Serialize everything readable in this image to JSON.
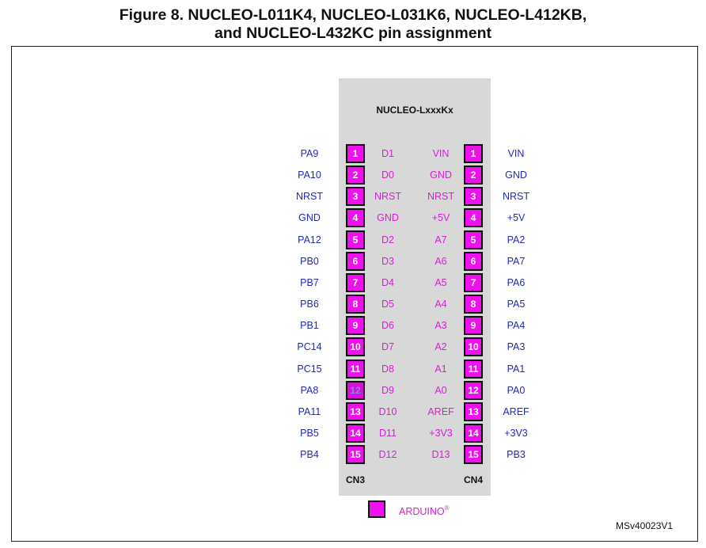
{
  "title": {
    "line1": "Figure 8. NUCLEO-L011K4, NUCLEO-L031K6, NUCLEO-L412KB,",
    "line2": "and NUCLEO-L432KC pin assignment"
  },
  "board_label": "NUCLEO-LxxxKx",
  "connectors": {
    "left": {
      "label": "CN3",
      "pins": [
        {
          "num": "1",
          "mcu": "PA9",
          "arduino": "D1"
        },
        {
          "num": "2",
          "mcu": "PA10",
          "arduino": "D0"
        },
        {
          "num": "3",
          "mcu": "NRST",
          "arduino": "NRST"
        },
        {
          "num": "4",
          "mcu": "GND",
          "arduino": "GND"
        },
        {
          "num": "5",
          "mcu": "PA12",
          "arduino": "D2"
        },
        {
          "num": "6",
          "mcu": "PB0",
          "arduino": "D3"
        },
        {
          "num": "7",
          "mcu": "PB7",
          "arduino": "D4"
        },
        {
          "num": "8",
          "mcu": "PB6",
          "arduino": "D5"
        },
        {
          "num": "9",
          "mcu": "PB1",
          "arduino": "D6"
        },
        {
          "num": "10",
          "mcu": "PC14",
          "arduino": "D7"
        },
        {
          "num": "11",
          "mcu": "PC15",
          "arduino": "D8"
        },
        {
          "num": "12",
          "mcu": "PA8",
          "arduino": "D9"
        },
        {
          "num": "13",
          "mcu": "PA11",
          "arduino": "D10"
        },
        {
          "num": "14",
          "mcu": "PB5",
          "arduino": "D11"
        },
        {
          "num": "15",
          "mcu": "PB4",
          "arduino": "D12"
        }
      ]
    },
    "right": {
      "label": "CN4",
      "pins": [
        {
          "num": "1",
          "arduino": "VIN",
          "mcu": "VIN"
        },
        {
          "num": "2",
          "arduino": "GND",
          "mcu": "GND"
        },
        {
          "num": "3",
          "arduino": "NRST",
          "mcu": "NRST"
        },
        {
          "num": "4",
          "arduino": "+5V",
          "mcu": "+5V"
        },
        {
          "num": "5",
          "arduino": "A7",
          "mcu": "PA2"
        },
        {
          "num": "6",
          "arduino": "A6",
          "mcu": "PA7"
        },
        {
          "num": "7",
          "arduino": "A5",
          "mcu": "PA6"
        },
        {
          "num": "8",
          "arduino": "A4",
          "mcu": "PA5"
        },
        {
          "num": "9",
          "arduino": "A3",
          "mcu": "PA4"
        },
        {
          "num": "10",
          "arduino": "A2",
          "mcu": "PA3"
        },
        {
          "num": "11",
          "arduino": "A1",
          "mcu": "PA1"
        },
        {
          "num": "12",
          "arduino": "A0",
          "mcu": "PA0"
        },
        {
          "num": "13",
          "arduino": "AREF",
          "mcu": "AREF"
        },
        {
          "num": "14",
          "arduino": "+3V3",
          "mcu": "+3V3"
        },
        {
          "num": "15",
          "arduino": "D13",
          "mcu": "PB3"
        }
      ]
    }
  },
  "legend": {
    "label": "ARDUINO",
    "mark": "®"
  },
  "figure_id": "MSv40023V1",
  "colors": {
    "pin_fill": "#ee11ee",
    "arduino_text": "#d21fd2",
    "mcu_text": "#1e2bb8",
    "board_fill": "#d8d8d8"
  }
}
